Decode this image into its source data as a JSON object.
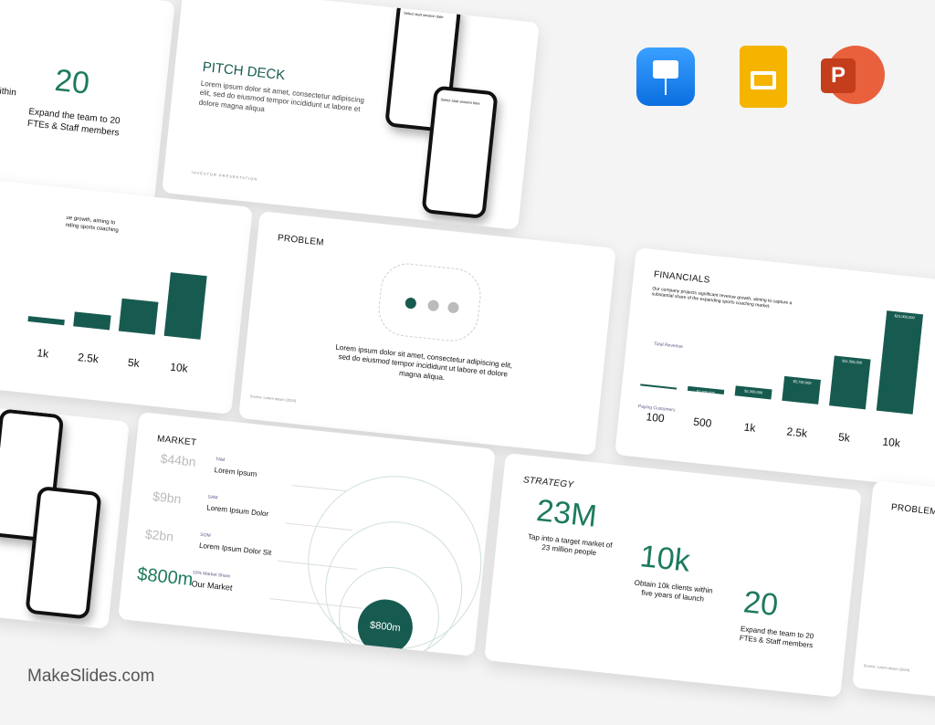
{
  "apps": [
    {
      "name": "keynote-icon",
      "color": "#1a8cff"
    },
    {
      "name": "google-slides-icon",
      "color": "#f4b400"
    },
    {
      "name": "powerpoint-icon",
      "color": "#d04423"
    }
  ],
  "brand": "MakeSlides.com",
  "accent": "#175b50",
  "pitch": {
    "title": "PITCH DECK",
    "body": "Lorem ipsum dolor sit amet, consectetur adipiscing elit, sed do eiusmod tempor incididunt ut labore et dolore magna aliqua",
    "footer": "INVESTOR PRESENTATION",
    "phone1": "Select start session date",
    "phone2": "Select start session time"
  },
  "topleft": {
    "stat_partial": "k",
    "text_partial": "s within\nnch",
    "stat": "20",
    "text": "Expand the team to 20 FTEs & Staff members"
  },
  "leftchart": {
    "text": "ue growth, aiming to\nnding sports coaching",
    "cats": [
      "1k",
      "2.5k",
      "5k",
      "10k"
    ]
  },
  "problem": {
    "title": "PROBLEM",
    "body": "Lorem ipsum dolor sit amet, consectetur adipiscing elit, sed do eiusmod tempor incididunt ut labore et dolore magna aliqua.",
    "source": "Source: Lorem ipsum (2024)"
  },
  "financials": {
    "title": "FINANCIALS",
    "body": "Our company projects significant revenue growth, aiming to capture a substantial share of the expanding sports coaching market.",
    "revenue_label": "Total Revenue",
    "customers_label": "Paying Customers",
    "chart_data": {
      "type": "bar",
      "categories": [
        "100",
        "500",
        "1k",
        "2.5k",
        "5k",
        "10k"
      ],
      "values": [
        100000,
        1000000,
        2300000,
        5750000,
        11500000,
        23000000
      ],
      "labels": [
        "",
        "$1,000,000",
        "$2,300,000",
        "$5,750,000",
        "$11,500,000",
        "$23,000,000"
      ]
    }
  },
  "market": {
    "title": "MARKET",
    "rows": [
      {
        "value": "$44bn",
        "tag": "TAM",
        "label": "Lorem Ipsum"
      },
      {
        "value": "$9bn",
        "tag": "SAM",
        "label": "Lorem Ipsum Dolor"
      },
      {
        "value": "$2bn",
        "tag": "SOM",
        "label": "Lorem Ipsum Dolor Sit"
      },
      {
        "value": "$800m",
        "tag": "10% Market Share",
        "label": "Our Market"
      }
    ],
    "circle": "$800m"
  },
  "strategy": {
    "title": "STRATEGY",
    "stats": [
      {
        "value": "23M",
        "text": "Tap into a target market of 23 million people"
      },
      {
        "value": "10k",
        "text": "Obtain 10k clients within five years of launch"
      },
      {
        "value": "20",
        "text": "Expand the team to 20 FTEs & Staff members"
      }
    ]
  },
  "problem2": {
    "title": "PROBLEM",
    "source": "Source: Lorem ipsum (2024)"
  }
}
